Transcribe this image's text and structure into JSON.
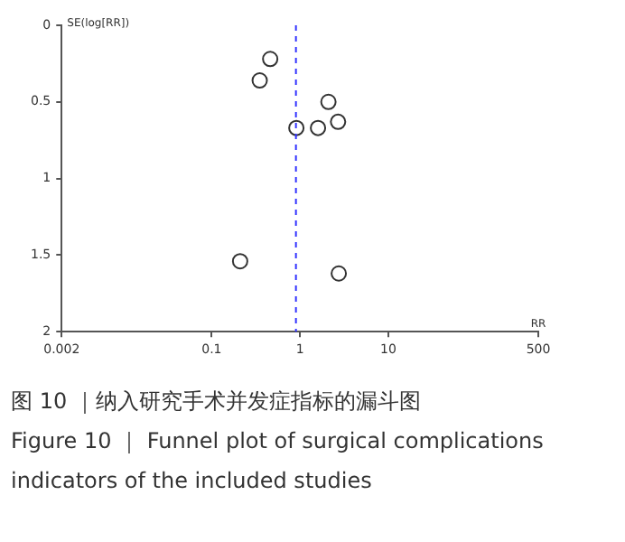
{
  "chart_data": {
    "type": "scatter",
    "xlabel": "RR",
    "ylabel": "SE(log[RR])",
    "x": [
      0.46,
      0.35,
      2.1,
      2.7,
      1.6,
      0.91,
      0.21,
      2.75
    ],
    "values": [
      0.22,
      0.36,
      0.5,
      0.63,
      0.67,
      0.67,
      1.54,
      1.62
    ],
    "color": "#333333",
    "marker": "circle",
    "log": "x",
    "grid": false,
    "legend": false,
    "xlim": [
      0.002,
      500
    ],
    "xticks": [
      0.002,
      0.1,
      1,
      10,
      500
    ],
    "ylim": [
      2,
      0
    ],
    "yticks": [
      0,
      0.5,
      1,
      1.5,
      2
    ],
    "ref_lines": [
      {
        "axis": "x",
        "value": 0.9,
        "color": "#3333ff",
        "line_style": "dashed"
      }
    ],
    "annotations": [
      "图 10 ｜纳入研究手术并发症指标的漏斗图",
      "Figure 10 ｜ Funnel plot of surgical complications indicators of the included studies"
    ]
  }
}
